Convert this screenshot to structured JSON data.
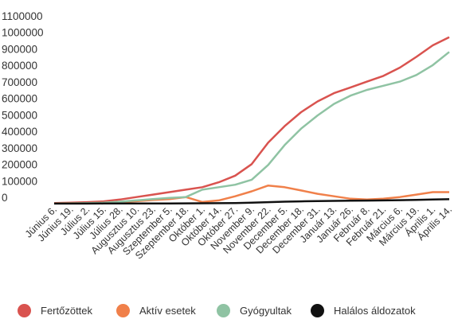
{
  "chart_data": {
    "type": "line",
    "title": "",
    "xlabel": "",
    "ylabel": "",
    "ylim": [
      0,
      1100000
    ],
    "yticks": [
      0,
      100000,
      200000,
      300000,
      400000,
      500000,
      600000,
      700000,
      800000,
      900000,
      1000000,
      1100000
    ],
    "ytick_labels": [
      "0",
      "100000",
      "200000",
      "300000",
      "400000",
      "500000",
      "600000",
      "700000",
      "800000",
      "900000",
      "1000000",
      "1100000"
    ],
    "categories": [
      "Június 6.",
      "Június 19.",
      "Július 2.",
      "Július 15.",
      "Július 28.",
      "Augusztus 10.",
      "Augusztus 23.",
      "Szeptember 5.",
      "Szeptember 18.",
      "Október 1.",
      "Október 14.",
      "Október 27.",
      "November 9.",
      "November 22.",
      "December 5.",
      "December 18.",
      "December 31.",
      "Január 13.",
      "Január 26.",
      "Február 8.",
      "Február 21.",
      "Március 6.",
      "Március 19.",
      "Április 1.",
      "Április 14."
    ],
    "grid": false,
    "legend_position": "bottom",
    "series": [
      {
        "name": "Fertőzöttek",
        "color": "#d9534f",
        "values": [
          4000,
          6000,
          9000,
          14000,
          25000,
          40000,
          55000,
          70000,
          85000,
          100000,
          130000,
          170000,
          240000,
          370000,
          470000,
          555000,
          620000,
          670000,
          705000,
          740000,
          775000,
          825000,
          890000,
          960000,
          1010000
        ]
      },
      {
        "name": "Aktív esetek",
        "color": "#f0804a",
        "values": [
          2000,
          3000,
          4000,
          6000,
          10000,
          15000,
          22000,
          28000,
          40000,
          10000,
          20000,
          45000,
          75000,
          110000,
          100000,
          80000,
          60000,
          45000,
          30000,
          25000,
          30000,
          40000,
          55000,
          70000,
          70000
        ]
      },
      {
        "name": "Gyógyultak",
        "color": "#8fc3a3",
        "values": [
          1500,
          2000,
          4000,
          6000,
          12000,
          20000,
          28000,
          35000,
          40000,
          85000,
          100000,
          115000,
          145000,
          235000,
          355000,
          455000,
          535000,
          605000,
          655000,
          690000,
          715000,
          740000,
          780000,
          840000,
          920000
        ]
      },
      {
        "name": "Halálos áldozatok",
        "color": "#111111",
        "values": [
          500,
          600,
          700,
          800,
          900,
          1000,
          1200,
          1500,
          2000,
          2500,
          3000,
          4000,
          6000,
          9000,
          12000,
          14000,
          16000,
          17000,
          18000,
          19000,
          20000,
          21000,
          23000,
          25000,
          27000
        ]
      }
    ]
  }
}
